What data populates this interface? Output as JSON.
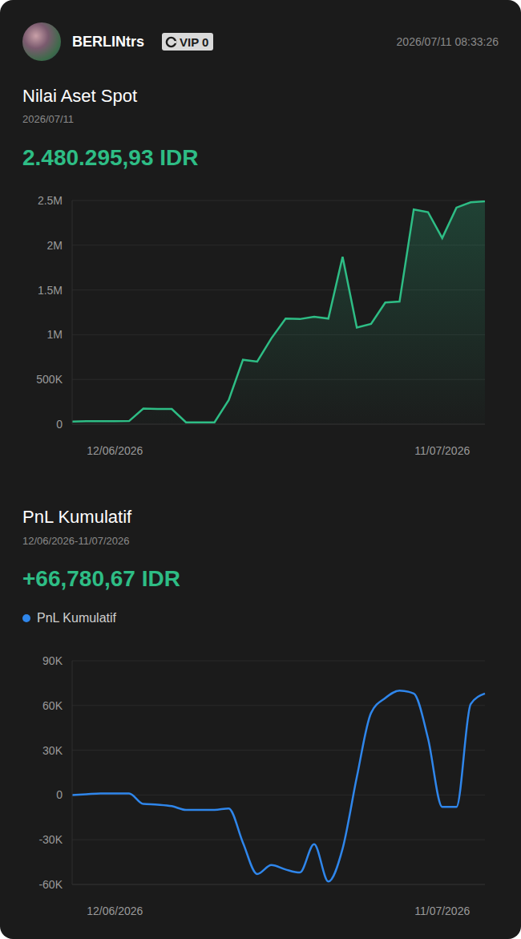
{
  "header": {
    "user": "BERLINtrs",
    "badge": "VIP 0",
    "timestamp": "2026/07/11 08:33:26"
  },
  "chart_data": [
    {
      "type": "area",
      "title": "Nilai Aset Spot",
      "subtitle": "2026/07/11",
      "annotations": [
        "2.480.295,93 IDR"
      ],
      "categories": [
        null,
        null,
        null,
        "12/06/2026",
        null,
        null,
        null,
        null,
        null,
        null,
        null,
        null,
        null,
        null,
        null,
        null,
        null,
        null,
        null,
        null,
        null,
        null,
        null,
        null,
        null,
        null,
        "11/07/2026",
        null,
        null,
        null
      ],
      "values": [
        30000,
        33000,
        33000,
        33000,
        35000,
        175000,
        170000,
        170000,
        20000,
        20000,
        20000,
        270000,
        720000,
        700000,
        960000,
        1180000,
        1175000,
        1200000,
        1180000,
        1870000,
        1080000,
        1120000,
        1360000,
        1370000,
        2400000,
        2370000,
        2080000,
        2420000,
        2480000,
        2490000
      ],
      "color": "#2ebd85",
      "ylim": [
        0,
        2500000
      ],
      "yticks": [
        0,
        {
          "value": 500000,
          "label": "500K"
        },
        {
          "value": 1000000,
          "label": "1M"
        },
        {
          "value": 1500000,
          "label": "1.5M"
        },
        {
          "value": 2000000,
          "label": "2M"
        },
        {
          "value": 2500000,
          "label": "2.5M"
        }
      ],
      "grid": true
    },
    {
      "type": "line",
      "title": "PnL Kumulatif",
      "subtitle": "12/06/2026-11/07/2026",
      "annotations": [
        "+66,780,67 IDR"
      ],
      "categories": [
        null,
        null,
        null,
        "12/06/2026",
        null,
        null,
        null,
        null,
        null,
        null,
        null,
        null,
        null,
        null,
        null,
        null,
        null,
        null,
        null,
        null,
        null,
        null,
        null,
        null,
        null,
        null,
        "11/07/2026",
        null,
        null,
        null
      ],
      "series": [
        {
          "name": "PnL Kumulatif",
          "color": "#2f86eb",
          "values": [
            0,
            500,
            1000,
            1000,
            1000,
            -6000,
            -6500,
            -7500,
            -10000,
            -10000,
            -10000,
            -9000,
            -32000,
            -53000,
            -47000,
            -50000,
            -52000,
            -33000,
            -58000,
            -36000,
            12000,
            55000,
            65000,
            70000,
            68000,
            38000,
            -8000,
            -8000,
            61000,
            68000
          ]
        }
      ],
      "ylim": [
        -60000,
        90000
      ],
      "yticks": [
        {
          "value": -60000,
          "label": "-60K"
        },
        {
          "value": -30000,
          "label": "-30K"
        },
        0,
        {
          "value": 30000,
          "label": "30K"
        },
        {
          "value": 60000,
          "label": "60K"
        },
        {
          "value": 90000,
          "label": "90K"
        }
      ],
      "legend": "top-left",
      "grid": true
    }
  ]
}
